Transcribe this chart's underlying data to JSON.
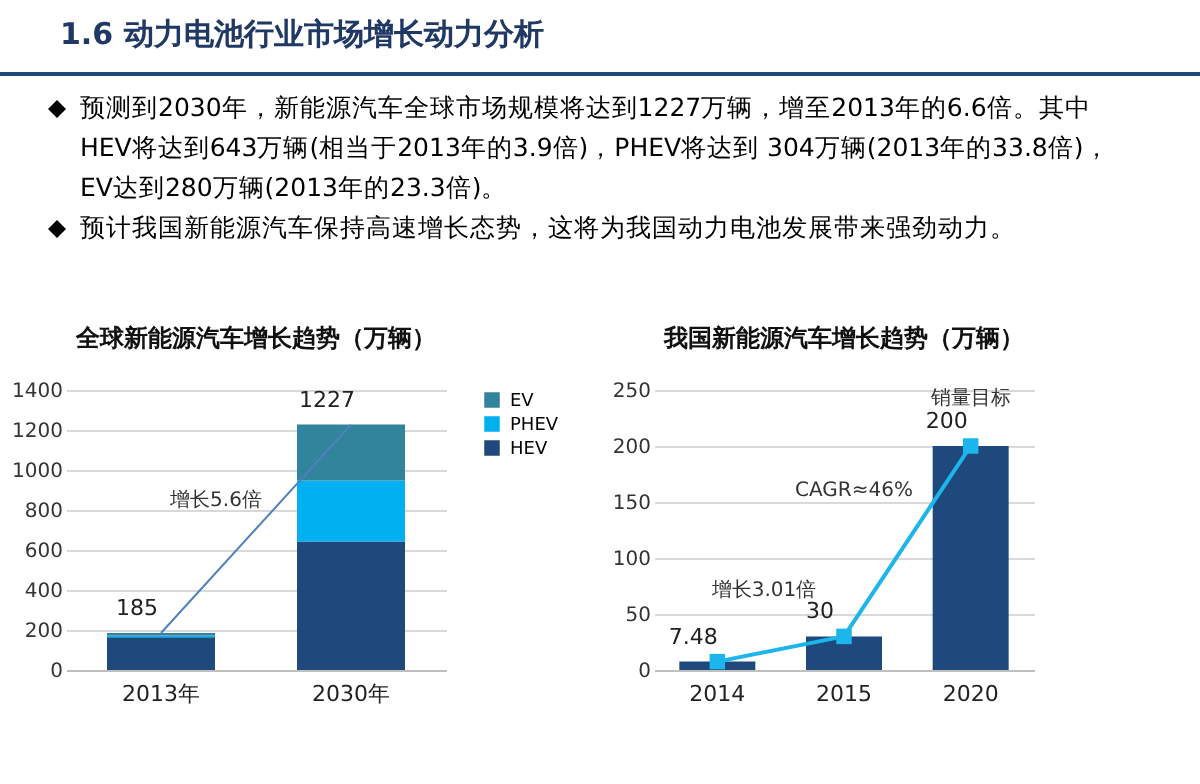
{
  "chart_data": [
    {
      "type": "other",
      "title": "1.6 动力电池行业市场增长动力分析",
      "annotations": [
        "预测到2030年，新能源汽车全球市场规模将达到1227万辆，增至2013年的6.6倍。其中HEV将达到643万辆(相当于2013年的3.9倍)，PHEV将达到 304万辆(2013年的33.8倍)，EV达到280万辆(2013年的23.3倍)。",
        "预计我国新能源汽车保持高速增长态势，这将为我国动力电池发展带来强劲动力。"
      ]
    },
    {
      "type": "bar",
      "title": "全球新能源汽车增长趋势（万辆）",
      "categories": [
        "2013年",
        "2030年"
      ],
      "stacked": true,
      "legend": "right",
      "grid": "y",
      "ylim": [
        0,
        1400
      ],
      "yticks": [
        0,
        200,
        400,
        600,
        800,
        1000,
        1200,
        1400
      ],
      "series": [
        {
          "name": "HEV",
          "color": "#1f497d",
          "values": [
            164,
            643
          ]
        },
        {
          "name": "PHEV",
          "color": "#00b0f0",
          "values": [
            9,
            304
          ]
        },
        {
          "name": "EV",
          "color": "#31849b",
          "values": [
            12,
            280
          ]
        },
        {
          "type": "line",
          "color": "#4f81bd",
          "values": [
            185,
            1227
          ]
        }
      ],
      "totals": [
        "185",
        "1227"
      ],
      "annotations": [
        "增长5.6倍"
      ]
    },
    {
      "type": "bar",
      "title": "我国新能源汽车增长趋势（万辆）",
      "categories": [
        "2014",
        "2015",
        "2020"
      ],
      "grid": "y",
      "ylim": [
        0,
        250
      ],
      "yticks": [
        0,
        50,
        100,
        150,
        200,
        250
      ],
      "series": [
        {
          "color": "#1f497d",
          "values": [
            7.48,
            30,
            200
          ],
          "value_labels": [
            "7.48",
            "30",
            "200"
          ]
        },
        {
          "type": "line",
          "color": "#1cb5ec",
          "marker": "square",
          "values": [
            7.48,
            30,
            200
          ]
        }
      ],
      "annotations": [
        {
          "text": "销量目标",
          "x": "2020",
          "y": 200
        },
        "增长3.01倍",
        "CAGR≈46%"
      ]
    }
  ]
}
